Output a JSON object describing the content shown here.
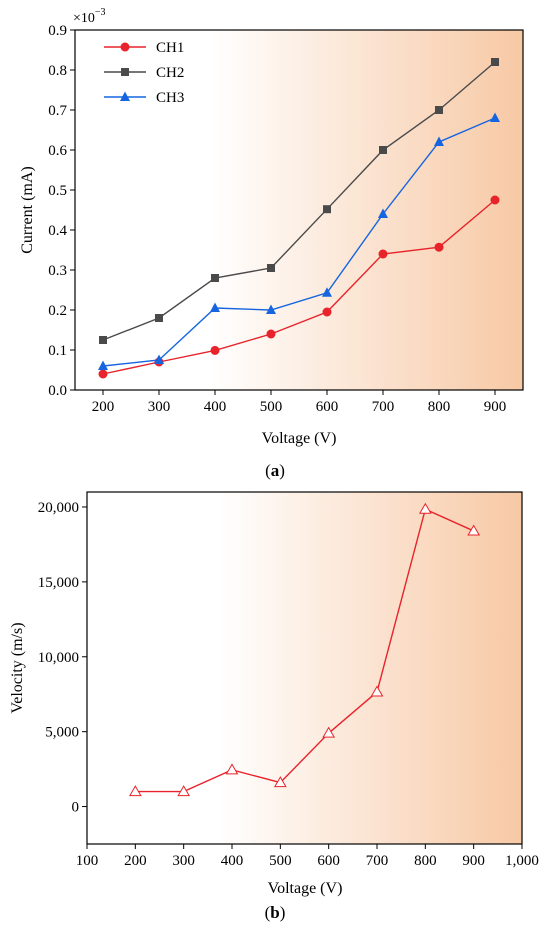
{
  "chart_data": [
    {
      "type": "line",
      "panel_label": "a",
      "xlabel": "Voltage (V)",
      "ylabel": "Current (mA)",
      "y_multiplier": "×10",
      "y_multiplier_exp": "−3",
      "x": [
        200,
        300,
        400,
        500,
        600,
        700,
        800,
        900
      ],
      "xlim": [
        150,
        950
      ],
      "ylim": [
        0,
        0.9
      ],
      "xticks": [
        "200",
        "300",
        "400",
        "500",
        "600",
        "700",
        "800",
        "900"
      ],
      "yticks": [
        "0.0",
        "0.1",
        "0.2",
        "0.3",
        "0.4",
        "0.5",
        "0.6",
        "0.7",
        "0.8",
        "0.9"
      ],
      "legend_position": "top-left",
      "background": "white-to-peach gradient",
      "series": [
        {
          "name": "CH1",
          "color": "#e8232b",
          "marker": "circle",
          "values": [
            0.04,
            0.07,
            0.099,
            0.14,
            0.195,
            0.34,
            0.357,
            0.475
          ]
        },
        {
          "name": "CH2",
          "color": "#4a4a4a",
          "marker": "square",
          "values": [
            0.125,
            0.18,
            0.28,
            0.305,
            0.452,
            0.6,
            0.7,
            0.82
          ]
        },
        {
          "name": "CH3",
          "color": "#1565e0",
          "marker": "triangle",
          "values": [
            0.06,
            0.075,
            0.205,
            0.2,
            0.243,
            0.44,
            0.62,
            0.68
          ]
        }
      ]
    },
    {
      "type": "line",
      "panel_label": "b",
      "xlabel": "Voltage (V)",
      "ylabel": "Velocity (m/s)",
      "x": [
        200,
        300,
        400,
        500,
        600,
        700,
        800,
        900
      ],
      "xlim": [
        100,
        1000
      ],
      "ylim": [
        -2500,
        21000
      ],
      "xticks": [
        "100",
        "200",
        "300",
        "400",
        "500",
        "600",
        "700",
        "800",
        "900",
        "1,000"
      ],
      "yticks": [
        "0",
        "5,000",
        "10,000",
        "15,000",
        "20,000"
      ],
      "background": "white-to-peach gradient",
      "series": [
        {
          "color": "#e8232b",
          "marker": "open-triangle",
          "values": [
            1000,
            1000,
            2450,
            1600,
            4900,
            7650,
            19850,
            18400
          ]
        }
      ]
    }
  ]
}
